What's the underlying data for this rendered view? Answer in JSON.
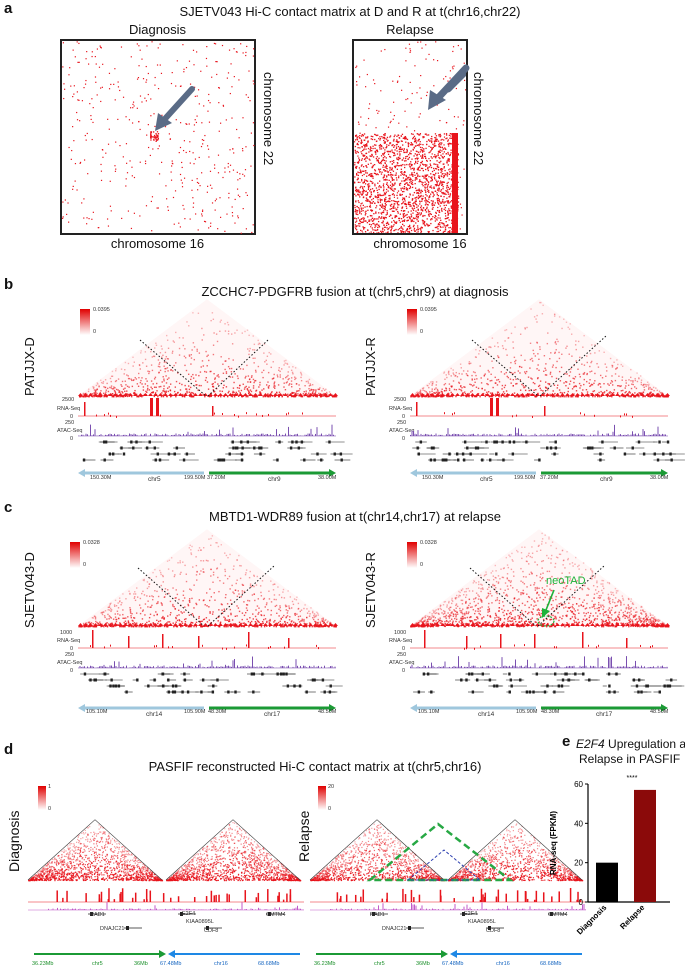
{
  "panel_a": {
    "letter": "a",
    "title": "SJETV043 Hi-C contact  matrix at D and R at t(chr16,chr22)",
    "left_label": "Diagnosis",
    "right_label": "Relapse",
    "x_axis": "chromosome 16",
    "y_axis": "chromosome 22"
  },
  "panel_b": {
    "letter": "b",
    "title": "ZCCHC7-PDGFRB fusion at t(chr5,chr9) at diagnosis",
    "left_sample": "PATJJX-D",
    "right_sample": "PATJJX-R",
    "scale_max": "0.0395",
    "scale_min": "0",
    "rna_label": "RNA-Seq",
    "atac_label": "ATAC-Seq",
    "rna_max": "2500",
    "atac_max": "250",
    "track_zero": "0",
    "coords": [
      "150.30M",
      "199.50M",
      "37.20M",
      "38.00M"
    ],
    "chrom_left": "chr5",
    "chrom_right": "chr9"
  },
  "panel_c": {
    "letter": "c",
    "title": "MBTD1-WDR89 fusion at t(chr14,chr17) at relapse",
    "left_sample": "SJETV043-D",
    "right_sample": "SJETV043-R",
    "scale_max": "0.0328",
    "scale_min": "0",
    "rna_label": "RNA-Seq",
    "atac_label": "ATAC-Seq",
    "rna_max": "1000",
    "atac_max": "250",
    "track_zero": "0",
    "coords": [
      "105.10M",
      "105.90M",
      "48.30M",
      "48.50M"
    ],
    "chrom_left": "chr14",
    "chrom_right": "chr17",
    "annotation": "neoTAD"
  },
  "panel_d": {
    "letter": "d",
    "title": "PASFIF reconstructed Hi-C contact matrix at t(chr5,chr16)",
    "left_label": "Diagnosis",
    "right_label": "Relapse",
    "scale_left_max": "1",
    "scale_left_min": "0",
    "scale_right_max": "20",
    "scale_right_min": "0",
    "genes_left": [
      "RAD1",
      "DNAJC21",
      "E2F4",
      "KIAA0895L",
      "CDF8",
      "CMTM4"
    ],
    "genes_right": [
      "RAD1",
      "DNAJC21",
      "E2F4",
      "KIAA0895L",
      "CDF8",
      "CMTM4"
    ],
    "coords": [
      "36.23Mb",
      "chr5",
      "36Mb",
      "67.48Mb",
      "chr16",
      "68.68Mb"
    ]
  },
  "panel_e": {
    "letter": "e",
    "title_gene": "E2F4",
    "title_rest": " Upregulation at",
    "title_line2": "Relapse in PASFIF",
    "significance": "****",
    "chart_data": {
      "type": "bar",
      "categories": [
        "Diagnosis",
        "Relapse"
      ],
      "values": [
        20,
        57
      ],
      "colors": [
        "#000000",
        "#8b0a0a"
      ],
      "ylabel": "RNA-seq (FPKM)",
      "ylim": [
        0,
        60
      ],
      "yticks": [
        "0",
        "20",
        "40",
        "60"
      ]
    }
  }
}
